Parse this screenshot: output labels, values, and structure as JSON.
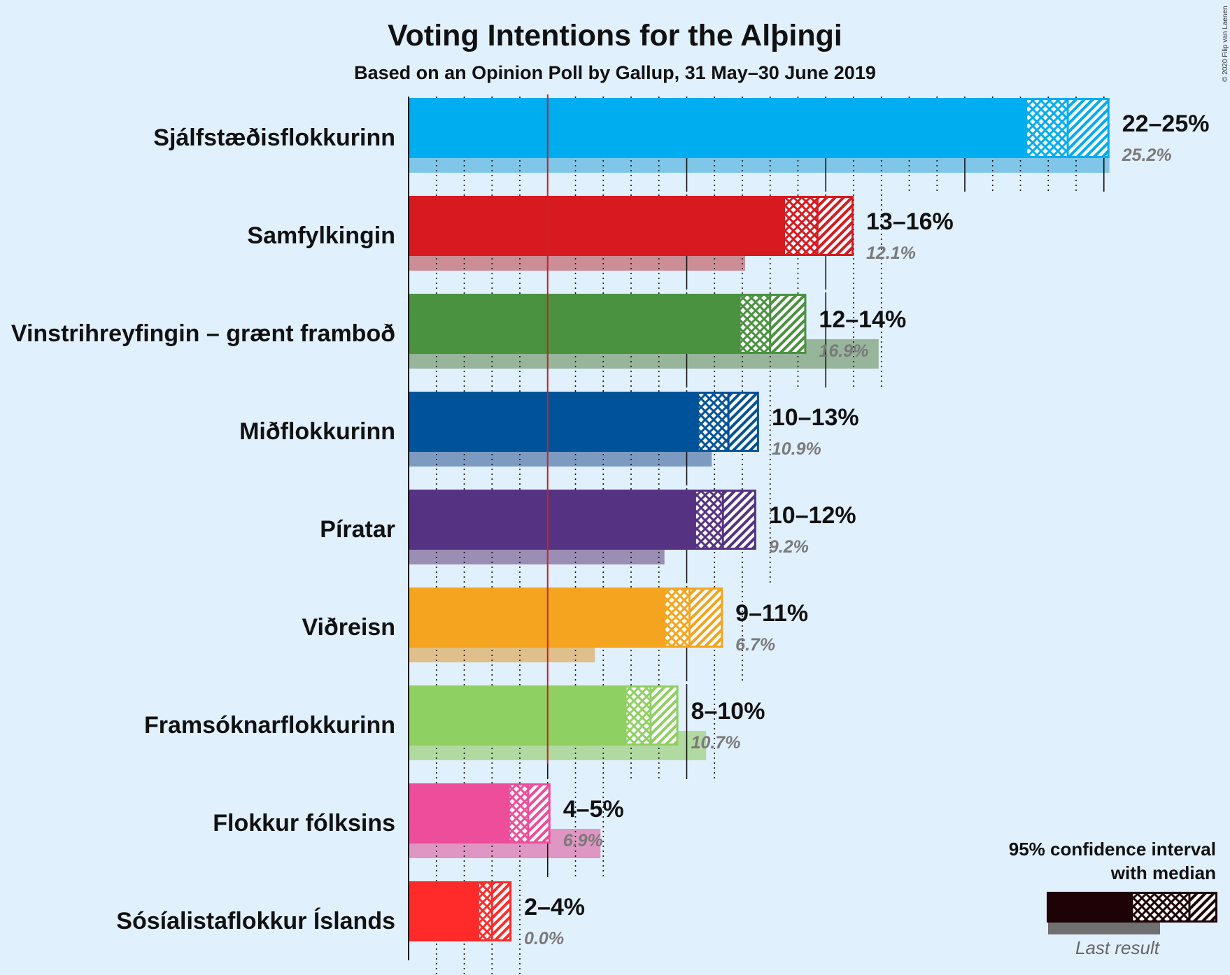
{
  "title": "Voting Intentions for the Alþingi",
  "subtitle": "Based on an Opinion Poll by Gallup, 31 May–30 June 2019",
  "copyright": "© 2020 Filip van Laenen",
  "legend": {
    "title_line1": "95% confidence interval",
    "title_line2": "with median",
    "last_result": "Last result"
  },
  "colors": {
    "background": "#e1f0fd",
    "threshold_line": "#cc2222",
    "legend_bar": "#1e0306",
    "legend_last": "#707070"
  },
  "chart_data": {
    "type": "bar",
    "orientation": "horizontal",
    "threshold": 5,
    "xlim": [
      0,
      25.2
    ],
    "categories": [
      "Sjálfstæðisflokkurinn",
      "Samfylkingin",
      "Vinstrihreyfingin – grænt framboð",
      "Miðflokkurinn",
      "Píratar",
      "Viðreisn",
      "Framsóknarflokkurinn",
      "Flokkur fólksins",
      "Sósíalistaflokkur Íslands"
    ],
    "series": [
      {
        "name": "95% confidence interval with median",
        "low": [
          22.2,
          13.5,
          11.9,
          10.4,
          10.3,
          9.2,
          7.8,
          3.6,
          2.5
        ],
        "median": [
          23.7,
          14.7,
          13.0,
          11.5,
          11.3,
          10.1,
          8.7,
          4.3,
          3.0
        ],
        "high": [
          25.2,
          16.0,
          14.3,
          12.6,
          12.5,
          11.3,
          9.7,
          5.1,
          3.7
        ],
        "labels": [
          "22–25%",
          "13–16%",
          "12–14%",
          "10–13%",
          "10–12%",
          "9–11%",
          "8–10%",
          "4–5%",
          "2–4%"
        ]
      },
      {
        "name": "Last result",
        "values": [
          25.2,
          12.1,
          16.9,
          10.9,
          9.2,
          6.7,
          10.7,
          6.9,
          0.0
        ],
        "labels": [
          "25.2%",
          "12.1%",
          "16.9%",
          "10.9%",
          "9.2%",
          "6.7%",
          "10.7%",
          "6.9%",
          "0.0%"
        ]
      }
    ],
    "party_colors": [
      "#00adef",
      "#d71920",
      "#4a9140",
      "#005399",
      "#553382",
      "#f4a41e",
      "#8fd063",
      "#ee4d9b",
      "#ff2b2b"
    ],
    "last_colors": [
      "#7fc6e8",
      "#cc8e96",
      "#97b59a",
      "#7d9bc1",
      "#9b8eb5",
      "#dfc08a",
      "#b1daa1",
      "#e096c2",
      "#f0a0a0"
    ]
  }
}
